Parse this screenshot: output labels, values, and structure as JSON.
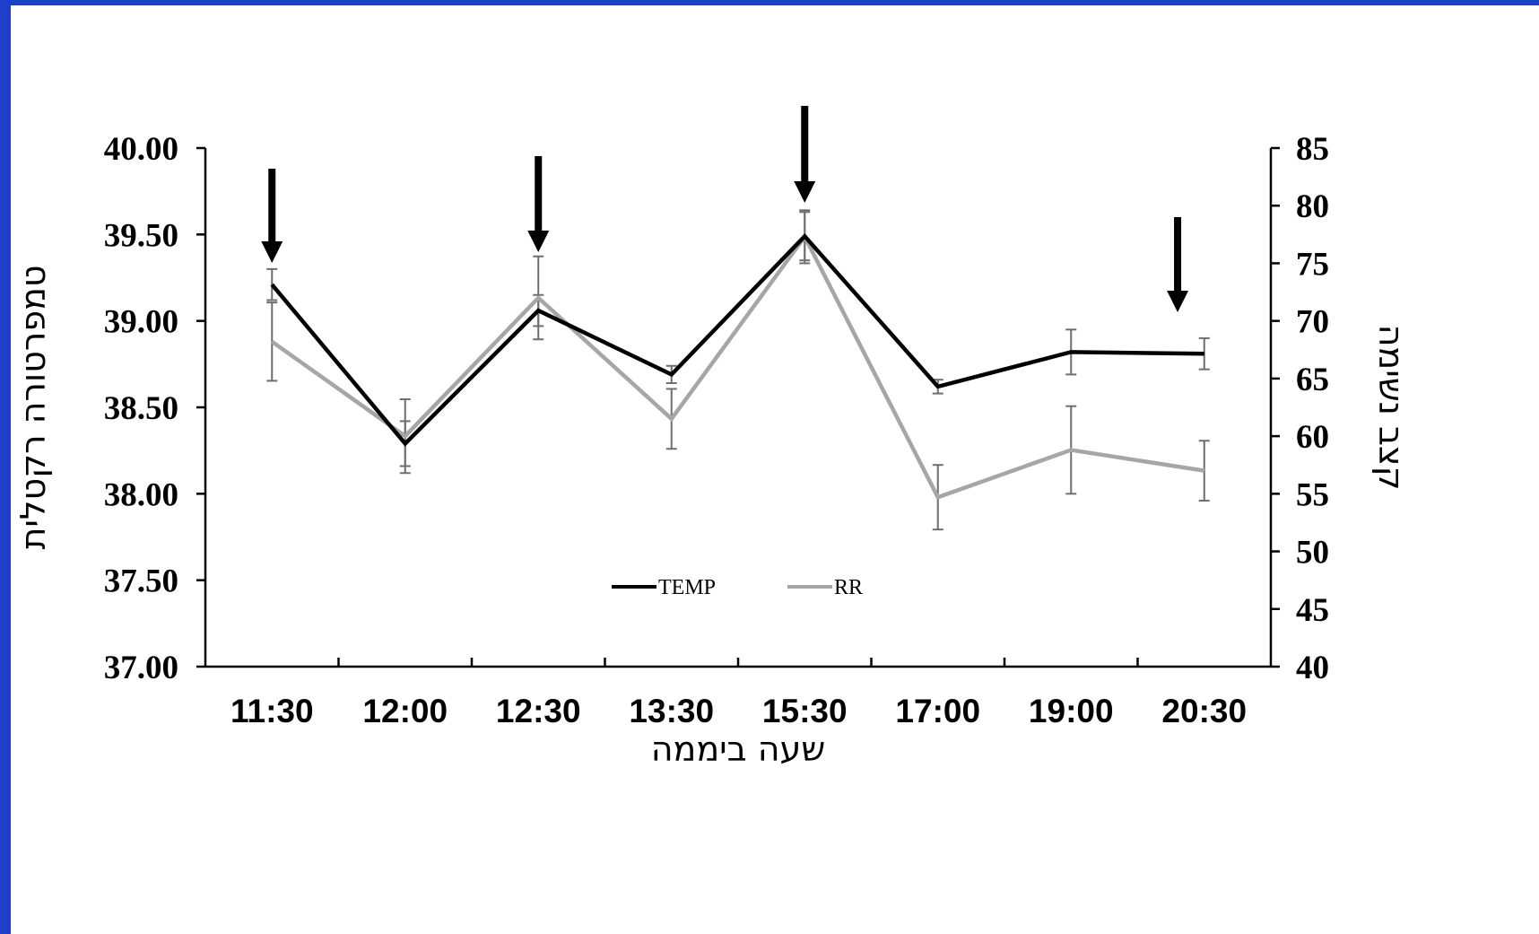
{
  "chart_data": {
    "type": "line",
    "title": "",
    "categories": [
      "11:30",
      "12:00",
      "12:30",
      "13:30",
      "15:30",
      "17:00",
      "19:00",
      "20:30"
    ],
    "xlabel": "שעה ביממה",
    "ylabel_left": "טמפרטורה רקטלית",
    "ylabel_right": "קצב נשימה",
    "y_left": {
      "min": 37,
      "max": 40,
      "ticks": [
        "37.00",
        "37.50",
        "38.00",
        "38.50",
        "39.00",
        "39.50",
        "40.00"
      ]
    },
    "y_right": {
      "min": 40,
      "max": 85,
      "ticks": [
        "40",
        "45",
        "50",
        "55",
        "60",
        "65",
        "70",
        "75",
        "80",
        "85"
      ]
    },
    "series": [
      {
        "name": "TEMP",
        "axis": "left",
        "color": "#000000",
        "values": [
          39.21,
          38.29,
          39.06,
          38.69,
          39.49,
          38.62,
          38.82,
          38.81
        ],
        "error": [
          0.09,
          0.13,
          0.09,
          0.05,
          0.14,
          0.04,
          0.13,
          0.09
        ]
      },
      {
        "name": "RR",
        "axis": "right",
        "color": "#a6a6a6",
        "values": [
          68.2,
          60.0,
          72.0,
          61.5,
          77.3,
          54.7,
          58.8,
          57.0
        ],
        "error": [
          3.4,
          3.2,
          3.6,
          2.6,
          2.3,
          2.8,
          3.8,
          2.6
        ]
      }
    ],
    "arrows_at": [
      0.0,
      2.0,
      4.0,
      6.8
    ],
    "legend_position": "bottom-center",
    "grid": false
  }
}
